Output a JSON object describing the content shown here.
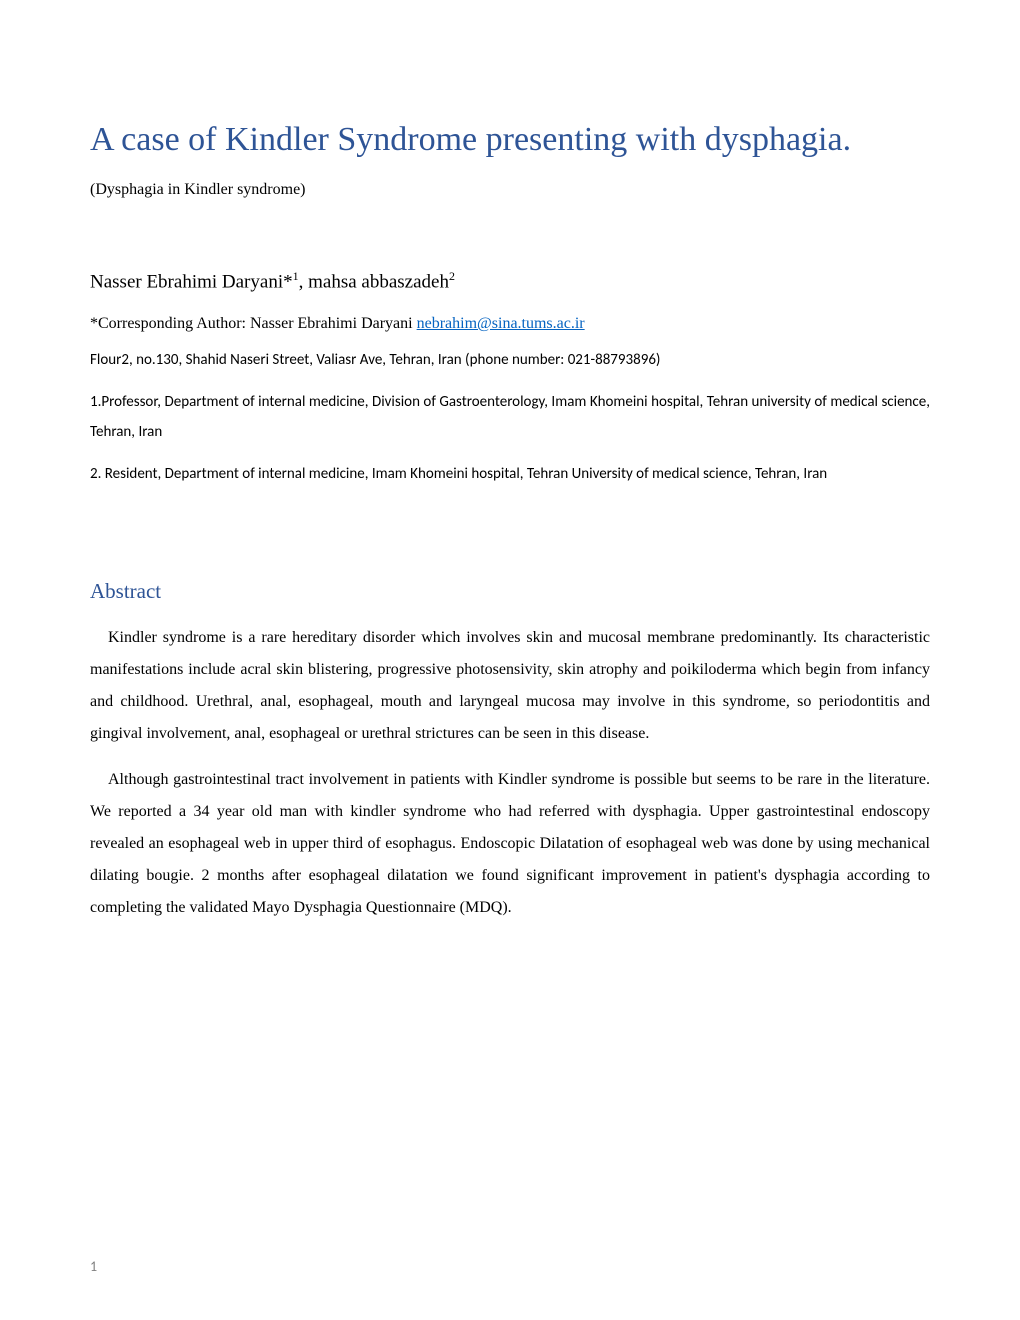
{
  "title": "A case of Kindler Syndrome presenting with dysphagia.",
  "subtitle": "(Dysphagia in Kindler syndrome)",
  "authors_html": "Nasser Ebrahimi Daryani*",
  "author1_sup": "1",
  "authors_sep": ", mahsa abbaszadeh",
  "author2_sup": "2",
  "corresponding_label": "*Corresponding Author: Nasser Ebrahimi Daryani ",
  "corresponding_email": "nebrahim@sina.tums.ac.ir",
  "address": "Flour2, no.130, Shahid Naseri Street, Valiasr Ave, Tehran, Iran (phone number: 021-88793896)",
  "affiliation1": "1.Professor, Department of internal medicine, Division of Gastroenterology, Imam Khomeini hospital, Tehran university of medical science, Tehran, Iran",
  "affiliation2": "2. Resident, Department of internal medicine, Imam Khomeini hospital, Tehran University of medical science, Tehran, Iran",
  "abstract_heading": "Abstract",
  "abstract_p1": "Kindler syndrome is a rare hereditary disorder which involves skin and mucosal membrane predominantly. Its characteristic manifestations include acral skin blistering, progressive photosensivity, skin atrophy and poikiloderma which begin from infancy and childhood. Urethral, anal, esophageal, mouth and laryngeal mucosa may involve in this syndrome, so periodontitis and gingival involvement, anal, esophageal or urethral strictures can be seen in this disease.",
  "abstract_p2": "Although gastrointestinal tract involvement in patients with Kindler syndrome is possible but seems to be rare in the literature. We reported a 34 year old man with kindler syndrome who had referred with dysphagia. Upper gastrointestinal endoscopy revealed an esophageal web in upper third of esophagus. Endoscopic Dilatation of esophageal web was done by using mechanical dilating bougie. 2 months after esophageal dilatation we found significant improvement in patient's dysphagia according to completing the validated Mayo Dysphagia Questionnaire (MDQ).",
  "page_number": "1",
  "colors": {
    "title": "#2e5496",
    "heading": "#2e5496",
    "text": "#000000",
    "link": "#0563c1",
    "pagenum": "#808080",
    "background": "#ffffff"
  }
}
